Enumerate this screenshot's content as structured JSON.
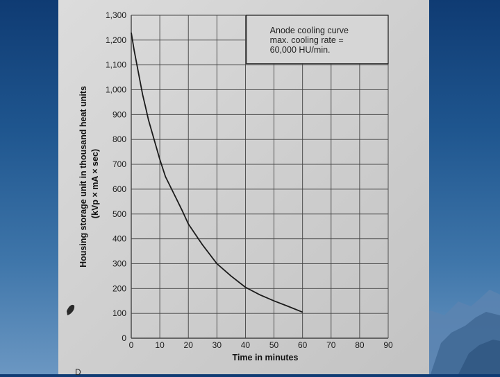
{
  "chart_data": {
    "type": "line",
    "title": "",
    "xlabel": "Time in minutes",
    "ylabel_lines": [
      "Housing storage unit in thousand heat units",
      "(kVp × mA × sec)"
    ],
    "x_ticks": [
      "0",
      "10",
      "20",
      "30",
      "40",
      "50",
      "60",
      "70",
      "80",
      "90"
    ],
    "y_ticks": [
      "0",
      "100",
      "200",
      "300",
      "400",
      "500",
      "600",
      "700",
      "800",
      "900",
      "1,000",
      "1,100",
      "1,200",
      "1,300"
    ],
    "xlim": [
      0,
      90
    ],
    "ylim": [
      0,
      1300
    ],
    "grid": true,
    "annotation_lines": [
      "Anode cooling curve",
      "max. cooling rate =",
      "60,000 HU/min."
    ],
    "series": [
      {
        "x": [
          0,
          1,
          2,
          3,
          4,
          5,
          6,
          8,
          10,
          12,
          15,
          18,
          20,
          25,
          30,
          35,
          40,
          45,
          50,
          55,
          60
        ],
        "y": [
          1230,
          1160,
          1100,
          1040,
          980,
          930,
          880,
          800,
          720,
          650,
          580,
          510,
          460,
          375,
          300,
          250,
          205,
          175,
          150,
          128,
          105
        ]
      }
    ]
  },
  "decor": {
    "corner_letter": "D",
    "background_colors": [
      "#0f3b73",
      "#6b97c2"
    ],
    "paper_color": "#d2d2d2",
    "line_color": "#1a1a1a"
  }
}
